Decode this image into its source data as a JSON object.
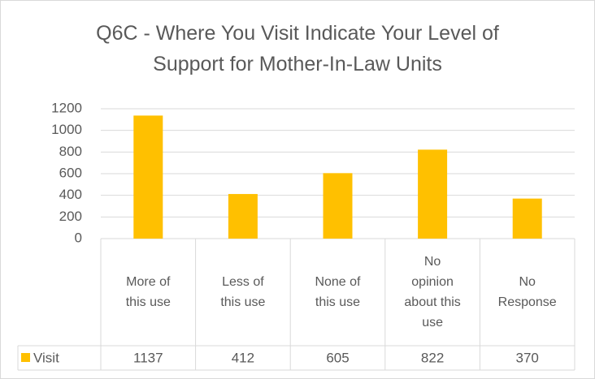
{
  "chart_data": {
    "type": "bar",
    "title": "Q6C - Where You Visit Indicate Your Level of Support for Mother-In-Law Units",
    "categories": [
      "More of this use",
      "Less of this use",
      "None of this use",
      "No opinion about this use",
      "No Response"
    ],
    "series": [
      {
        "name": "Visit",
        "color": "#ffc000",
        "values": [
          1137,
          412,
          605,
          822,
          370
        ]
      }
    ],
    "ylim": [
      0,
      1200
    ],
    "yticks": [
      0,
      200,
      400,
      600,
      800,
      1000,
      1200
    ],
    "grid": true,
    "legend": "data-table"
  }
}
